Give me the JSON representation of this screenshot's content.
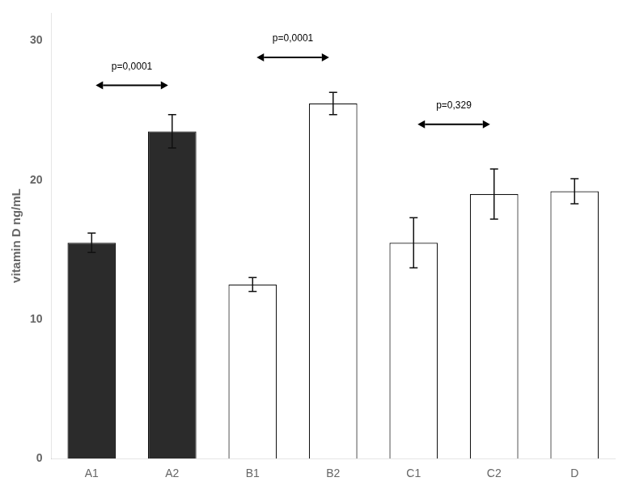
{
  "chart_data": {
    "type": "bar",
    "ylabel": "vitamin D ng/mL",
    "categories": [
      "A1",
      "A2",
      "B1",
      "B2",
      "C1",
      "C2",
      "D"
    ],
    "values": [
      15.5,
      23.5,
      12.5,
      25.5,
      15.5,
      19.0,
      19.2
    ],
    "errors": [
      0.7,
      1.2,
      0.5,
      0.8,
      1.8,
      1.8,
      0.9
    ],
    "colors": [
      "#2b2b2b",
      "#2b2b2b",
      "#ffffff",
      "#ffffff",
      "#ffffff",
      "#ffffff",
      "#ffffff"
    ],
    "ylim": [
      0,
      32
    ],
    "yticks": [
      0,
      10,
      20,
      30
    ],
    "grid": false,
    "annotations": [
      {
        "text": "p=0,0001",
        "from": "A1",
        "to": "A2",
        "y": 26.8,
        "text_y": 27.8
      },
      {
        "text": "p=0,0001",
        "from": "B1",
        "to": "B2",
        "y": 28.8,
        "text_y": 29.8
      },
      {
        "text": "p=0,329",
        "from": "C1",
        "to": "C2",
        "y": 24.0,
        "text_y": 25.0
      }
    ]
  }
}
